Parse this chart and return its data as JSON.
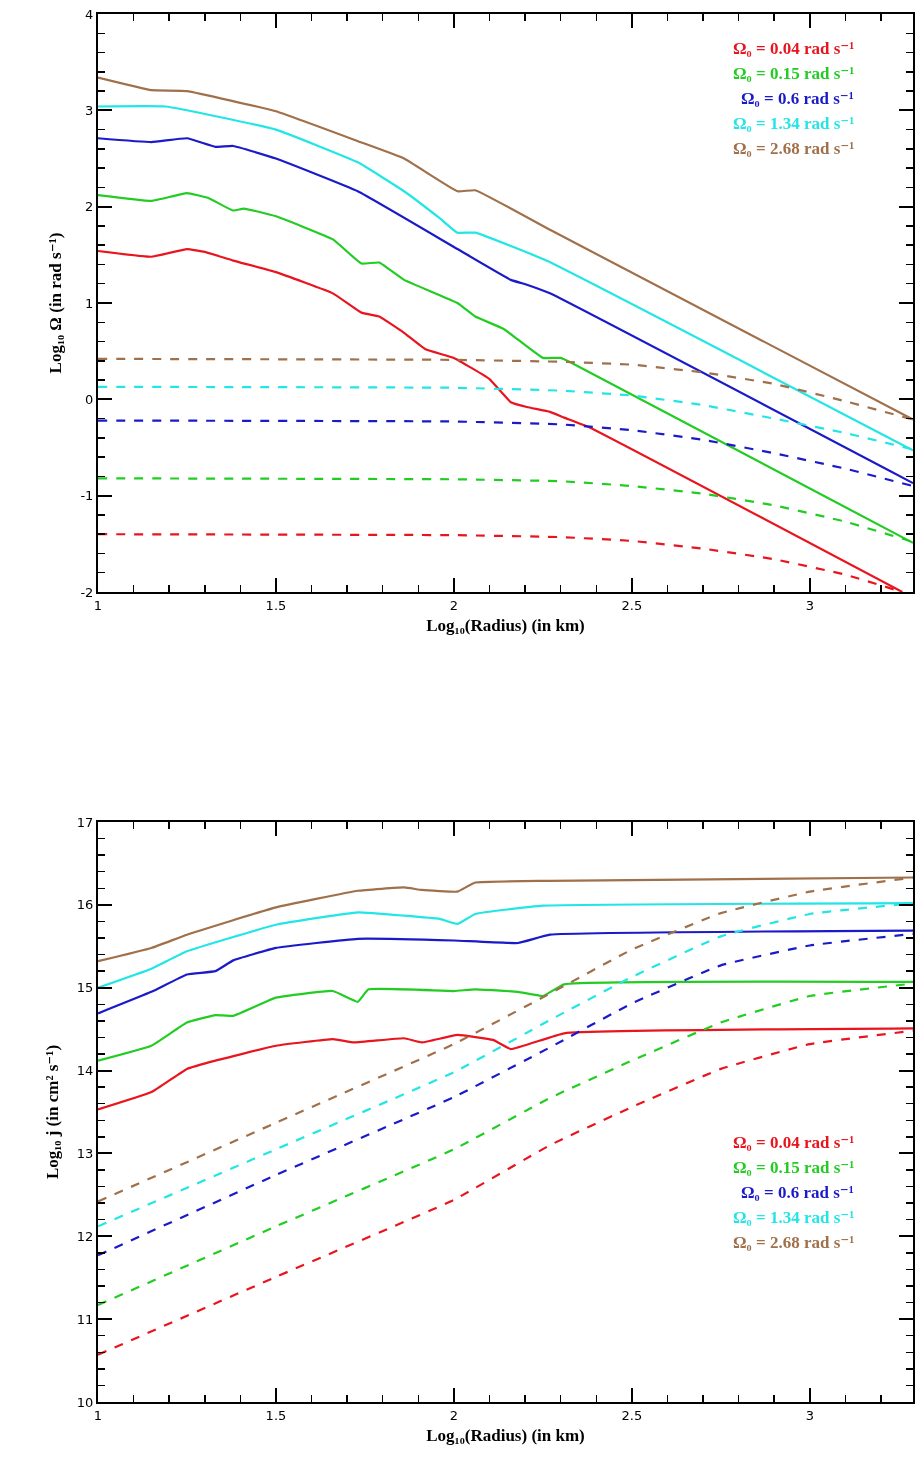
{
  "chart_data": [
    {
      "type": "line",
      "xlabel": "Log₁₀(Radius) (in km)",
      "ylabel": "Log₁₀ Ω (in rad s⁻¹)",
      "xlim": [
        1,
        3.29
      ],
      "ylim": [
        -2,
        4
      ],
      "xticks": [
        1,
        1.5,
        2,
        2.5,
        3
      ],
      "yticks": [
        -2,
        -1,
        0,
        1,
        2,
        3,
        4
      ],
      "legend": "top right",
      "marker": "none",
      "series": [
        {
          "name": "Ω₀ = 0.04 rad s⁻¹",
          "color": "#e8151f",
          "line_style": "solid",
          "x": [
            1,
            1.15,
            1.25,
            1.3,
            1.38,
            1.5,
            1.66,
            1.74,
            1.79,
            1.86,
            1.92,
            2.0,
            2.1,
            2.16,
            2.205,
            2.27,
            2.31,
            2.38,
            3.26
          ],
          "values": [
            1.54,
            1.48,
            1.56,
            1.53,
            1.44,
            1.32,
            1.1,
            0.9,
            0.86,
            0.69,
            0.52,
            0.43,
            0.21,
            -0.03,
            -0.08,
            -0.13,
            -0.19,
            -0.29,
            -2.0
          ]
        },
        {
          "name": "Ω₀ = 0.15 rad s⁻¹",
          "color": "#22cc22",
          "line_style": "solid",
          "x": [
            1,
            1.15,
            1.25,
            1.31,
            1.38,
            1.41,
            1.5,
            1.66,
            1.74,
            1.79,
            1.86,
            2.01,
            2.06,
            2.14,
            2.25,
            2.3,
            2.33,
            3.29
          ],
          "values": [
            2.12,
            2.06,
            2.14,
            2.09,
            1.96,
            1.98,
            1.9,
            1.66,
            1.41,
            1.42,
            1.24,
            1.0,
            0.86,
            0.73,
            0.43,
            0.43,
            0.38,
            -1.49
          ]
        },
        {
          "name": "Ω₀ = 0.6 rad s⁻¹",
          "color": "#1a1ac8",
          "line_style": "solid",
          "x": [
            1,
            1.15,
            1.25,
            1.33,
            1.38,
            1.5,
            1.73,
            2.01,
            2.16,
            2.205,
            2.27,
            3.29
          ],
          "values": [
            2.71,
            2.67,
            2.71,
            2.62,
            2.63,
            2.5,
            2.16,
            1.56,
            1.24,
            1.19,
            1.1,
            -0.87
          ]
        },
        {
          "name": "Ω₀ = 1.34 rad s⁻¹",
          "color": "#22e5e5",
          "line_style": "solid",
          "x": [
            1,
            1.19,
            1.5,
            1.73,
            1.86,
            1.96,
            2.01,
            2.06,
            2.26,
            3.29
          ],
          "values": [
            3.04,
            3.04,
            2.8,
            2.46,
            2.16,
            1.88,
            1.73,
            1.73,
            1.44,
            -0.53
          ]
        },
        {
          "name": "Ω₀ = 2.68 rad s⁻¹",
          "color": "#a0704a",
          "line_style": "solid",
          "x": [
            1,
            1.15,
            1.25,
            1.5,
            1.73,
            1.86,
            2.01,
            2.06,
            2.27,
            3.29
          ],
          "values": [
            3.34,
            3.21,
            3.2,
            2.99,
            2.68,
            2.5,
            2.16,
            2.17,
            1.76,
            -0.21
          ]
        },
        {
          "color": "#e8151f",
          "line_style": "dashed",
          "x": [
            1,
            2.0,
            2.3,
            2.5,
            2.7,
            2.9,
            3.1,
            3.26
          ],
          "values": [
            -1.4,
            -1.41,
            -1.43,
            -1.47,
            -1.55,
            -1.66,
            -1.82,
            -2.0
          ]
        },
        {
          "color": "#22cc22",
          "line_style": "dashed",
          "x": [
            1,
            2.0,
            2.3,
            2.5,
            2.7,
            2.9,
            3.1,
            3.29
          ],
          "values": [
            -0.82,
            -0.83,
            -0.85,
            -0.9,
            -0.98,
            -1.1,
            -1.27,
            -1.48
          ]
        },
        {
          "color": "#1a1ac8",
          "line_style": "dashed",
          "x": [
            1,
            2.0,
            2.3,
            2.5,
            2.7,
            2.9,
            3.1,
            3.29
          ],
          "values": [
            -0.22,
            -0.23,
            -0.26,
            -0.32,
            -0.42,
            -0.56,
            -0.72,
            -0.9
          ]
        },
        {
          "color": "#22e5e5",
          "line_style": "dashed",
          "x": [
            1,
            2.0,
            2.3,
            2.5,
            2.7,
            2.9,
            3.1,
            3.29
          ],
          "values": [
            0.13,
            0.12,
            0.09,
            0.04,
            -0.06,
            -0.2,
            -0.35,
            -0.52
          ]
        },
        {
          "color": "#a0704a",
          "line_style": "dashed",
          "x": [
            1,
            2.0,
            2.3,
            2.5,
            2.7,
            2.9,
            3.1,
            3.29
          ],
          "values": [
            0.42,
            0.41,
            0.39,
            0.36,
            0.28,
            0.16,
            -0.02,
            -0.21
          ]
        }
      ]
    },
    {
      "type": "line",
      "xlabel": "Log₁₀(Radius) (in km)",
      "ylabel": "Log₁₀ j (in cm² s⁻¹)",
      "xlim": [
        1,
        3.29
      ],
      "ylim": [
        10,
        17
      ],
      "xticks": [
        1,
        1.5,
        2,
        2.5,
        3
      ],
      "yticks": [
        10,
        11,
        12,
        13,
        14,
        15,
        16,
        17
      ],
      "legend": "bottom right",
      "marker": "none",
      "series": [
        {
          "name": "Ω₀ = 0.04 rad s⁻¹",
          "color": "#e8151f",
          "line_style": "solid",
          "x": [
            1,
            1.15,
            1.25,
            1.33,
            1.5,
            1.66,
            1.72,
            1.86,
            1.91,
            2.01,
            2.11,
            2.16,
            2.31,
            3.29
          ],
          "values": [
            13.53,
            13.74,
            14.02,
            14.12,
            14.3,
            14.38,
            14.34,
            14.39,
            14.34,
            14.43,
            14.37,
            14.26,
            14.45,
            14.51
          ]
        },
        {
          "name": "Ω₀ = 0.15 rad s⁻¹",
          "color": "#22cc22",
          "line_style": "solid",
          "x": [
            1,
            1.15,
            1.25,
            1.33,
            1.38,
            1.5,
            1.66,
            1.73,
            1.76,
            2.0,
            2.06,
            2.18,
            2.25,
            2.31,
            3.29
          ],
          "values": [
            14.12,
            14.3,
            14.58,
            14.67,
            14.66,
            14.88,
            14.96,
            14.83,
            14.98,
            14.96,
            14.98,
            14.95,
            14.9,
            15.04,
            15.07
          ]
        },
        {
          "name": "Ω₀ = 0.6 rad s⁻¹",
          "color": "#1a1ac8",
          "line_style": "solid",
          "x": [
            1,
            1.15,
            1.25,
            1.33,
            1.38,
            1.5,
            1.73,
            2.0,
            2.18,
            2.27,
            3.29
          ],
          "values": [
            14.69,
            14.95,
            15.16,
            15.2,
            15.33,
            15.48,
            15.59,
            15.57,
            15.54,
            15.64,
            15.69
          ]
        },
        {
          "name": "Ω₀ = 1.34 rad s⁻¹",
          "color": "#22e5e5",
          "line_style": "solid",
          "x": [
            1,
            1.15,
            1.25,
            1.5,
            1.73,
            1.86,
            1.96,
            2.01,
            2.06,
            2.25,
            3.29
          ],
          "values": [
            15.0,
            15.23,
            15.44,
            15.76,
            15.91,
            15.87,
            15.83,
            15.77,
            15.89,
            15.99,
            16.02
          ]
        },
        {
          "name": "Ω₀ = 2.68 rad s⁻¹",
          "color": "#a0704a",
          "line_style": "solid",
          "x": [
            1,
            1.15,
            1.25,
            1.5,
            1.73,
            1.86,
            1.91,
            2.01,
            2.06,
            2.27,
            3.29
          ],
          "values": [
            15.32,
            15.48,
            15.64,
            15.97,
            16.17,
            16.21,
            16.18,
            16.16,
            16.27,
            16.29,
            16.33
          ]
        },
        {
          "color": "#e8151f",
          "line_style": "dashed",
          "x": [
            1,
            1.5,
            2.0,
            2.27,
            2.5,
            2.75,
            3.0,
            3.29
          ],
          "values": [
            10.57,
            11.51,
            12.44,
            13.1,
            13.56,
            14.02,
            14.32,
            14.48
          ]
        },
        {
          "color": "#22cc22",
          "line_style": "dashed",
          "x": [
            1,
            1.5,
            2.0,
            2.27,
            2.5,
            2.75,
            3.0,
            3.29
          ],
          "values": [
            11.17,
            12.12,
            13.05,
            13.67,
            14.12,
            14.58,
            14.9,
            15.05
          ]
        },
        {
          "color": "#1a1ac8",
          "line_style": "dashed",
          "x": [
            1,
            1.5,
            2.0,
            2.27,
            2.5,
            2.75,
            3.0,
            3.29
          ],
          "values": [
            11.77,
            12.74,
            13.68,
            14.28,
            14.81,
            15.27,
            15.51,
            15.65
          ]
        },
        {
          "color": "#22e5e5",
          "line_style": "dashed",
          "x": [
            1,
            1.5,
            2.0,
            2.27,
            2.5,
            2.75,
            3.0,
            3.29
          ],
          "values": [
            12.12,
            13.05,
            13.98,
            14.61,
            15.13,
            15.62,
            15.89,
            16.02
          ]
        },
        {
          "color": "#a0704a",
          "line_style": "dashed",
          "x": [
            1,
            1.5,
            2.0,
            2.27,
            2.5,
            2.75,
            3.0,
            3.29
          ],
          "values": [
            12.42,
            13.37,
            14.32,
            14.93,
            15.46,
            15.9,
            16.16,
            16.33
          ]
        }
      ]
    }
  ]
}
